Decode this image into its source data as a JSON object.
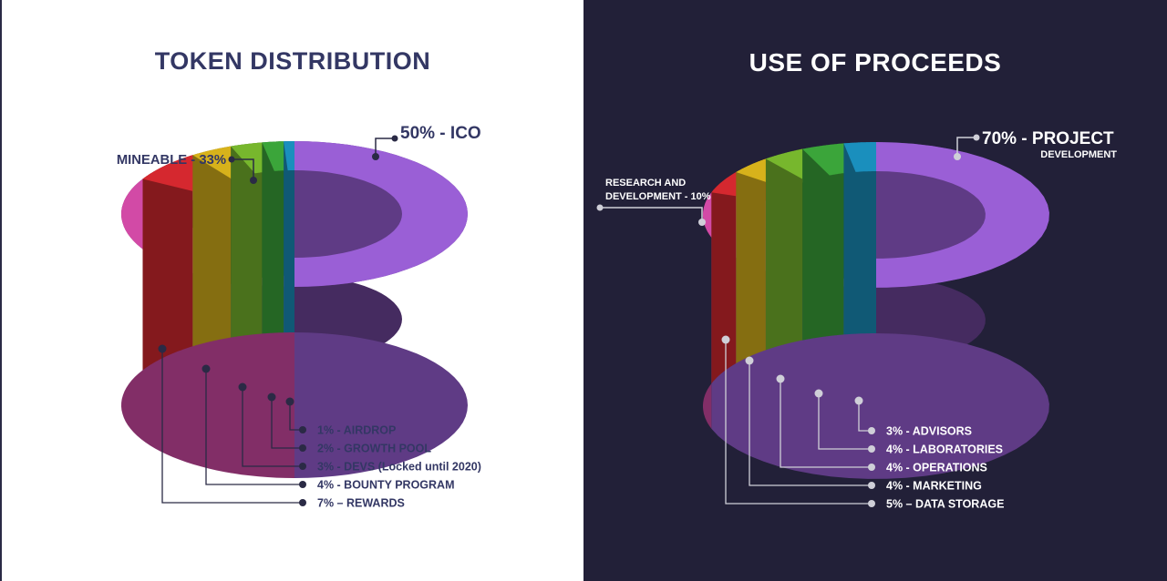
{
  "chart_data": [
    {
      "type": "pie",
      "title": "TOKEN DISTRIBUTION",
      "slices": [
        {
          "label": "50% - ICO",
          "value": 50,
          "color": "#9a5fd6"
        },
        {
          "label": "MINEABLE - 33%",
          "value": 33,
          "color": "#d24aa6"
        },
        {
          "label": "7% – REWARDS",
          "value": 7,
          "color": "#d5282f"
        },
        {
          "label": "4% - BOUNTY PROGRAM",
          "value": 4,
          "color": "#d7b21b"
        },
        {
          "label": "3% - DEVS (Locked until 2020)",
          "value": 3,
          "color": "#77b72d"
        },
        {
          "label": "2% - GROWTH POOL",
          "value": 2,
          "color": "#3ba53a"
        },
        {
          "label": "1% - AIRDROP",
          "value": 1,
          "color": "#1a8fbd"
        }
      ]
    },
    {
      "type": "pie",
      "title": "USE OF PROCEEDS",
      "slices": [
        {
          "label": "70% - PROJECT",
          "sublabel": "DEVELOPMENT",
          "value": 70,
          "color": "#9a5fd6"
        },
        {
          "label": "RESEARCH AND",
          "sublabel": "DEVELOPMENT - 10%",
          "value": 10,
          "color": "#d24aa6"
        },
        {
          "label": "5% – DATA STORAGE",
          "value": 5,
          "color": "#d5282f"
        },
        {
          "label": "4% - MARKETING",
          "value": 4,
          "color": "#d7b21b"
        },
        {
          "label": "4% - OPERATIONS",
          "value": 4,
          "color": "#77b72d"
        },
        {
          "label": "4% - LABORATORIES",
          "value": 4,
          "color": "#3ba53a"
        },
        {
          "label": "3% - ADVISORS",
          "value": 3,
          "color": "#1a8fbd"
        }
      ]
    }
  ]
}
